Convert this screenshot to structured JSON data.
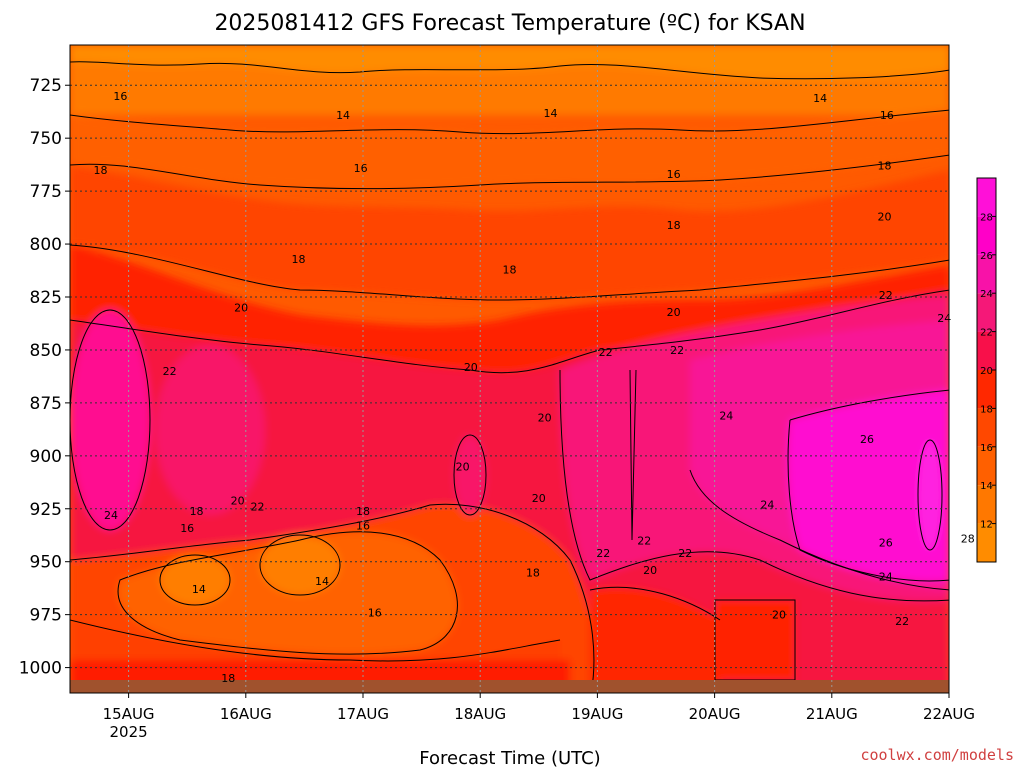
{
  "chart_data": {
    "type": "heatmap",
    "title": "2025081412 GFS Forecast Temperature (ºC) for KSAN",
    "xlabel": "Forecast Time (UTC)",
    "ylabel": "",
    "x_ticks": [
      "15AUG",
      "16AUG",
      "17AUG",
      "18AUG",
      "19AUG",
      "20AUG",
      "21AUG",
      "22AUG"
    ],
    "x_year": "2025",
    "x_range_days": [
      14.5,
      22.0
    ],
    "y_ticks": [
      725,
      750,
      775,
      800,
      825,
      850,
      875,
      900,
      925,
      950,
      975,
      1000
    ],
    "y_range_hpa": [
      706,
      1012
    ],
    "grid": true,
    "colorbar": {
      "levels": [
        12,
        14,
        16,
        18,
        20,
        22,
        24,
        26,
        28
      ],
      "colors": [
        "#ff8c00",
        "#ff7800",
        "#ff6000",
        "#ff4800",
        "#ff2800",
        "#f8104a",
        "#f51878",
        "#f812a8",
        "#ff00c8",
        "#ff10d8"
      ]
    },
    "contour_labels": [
      {
        "text": "16",
        "day": 14.93,
        "p": 730
      },
      {
        "text": "14",
        "day": 16.83,
        "p": 739
      },
      {
        "text": "14",
        "day": 18.6,
        "p": 738
      },
      {
        "text": "14",
        "day": 20.9,
        "p": 731
      },
      {
        "text": "16",
        "day": 21.47,
        "p": 739
      },
      {
        "text": "18",
        "day": 14.76,
        "p": 765
      },
      {
        "text": "16",
        "day": 16.98,
        "p": 764
      },
      {
        "text": "16",
        "day": 19.65,
        "p": 767
      },
      {
        "text": "18",
        "day": 21.45,
        "p": 763
      },
      {
        "text": "18",
        "day": 16.45,
        "p": 807
      },
      {
        "text": "18",
        "day": 18.25,
        "p": 812
      },
      {
        "text": "18",
        "day": 19.65,
        "p": 791
      },
      {
        "text": "20",
        "day": 21.45,
        "p": 787
      },
      {
        "text": "20",
        "day": 15.96,
        "p": 830
      },
      {
        "text": "20",
        "day": 19.65,
        "p": 832
      },
      {
        "text": "22",
        "day": 21.46,
        "p": 824
      },
      {
        "text": "24",
        "day": 21.96,
        "p": 835
      },
      {
        "text": "22",
        "day": 15.35,
        "p": 860
      },
      {
        "text": "20",
        "day": 17.92,
        "p": 858
      },
      {
        "text": "22",
        "day": 19.07,
        "p": 851
      },
      {
        "text": "22",
        "day": 19.68,
        "p": 850
      },
      {
        "text": "20",
        "day": 18.55,
        "p": 882
      },
      {
        "text": "24",
        "day": 20.1,
        "p": 881
      },
      {
        "text": "26",
        "day": 21.3,
        "p": 892
      },
      {
        "text": "20",
        "day": 17.85,
        "p": 905
      },
      {
        "text": "18",
        "day": 15.58,
        "p": 926
      },
      {
        "text": "20",
        "day": 15.93,
        "p": 921
      },
      {
        "text": "22",
        "day": 16.1,
        "p": 924
      },
      {
        "text": "16",
        "day": 15.5,
        "p": 934
      },
      {
        "text": "18",
        "day": 17.0,
        "p": 926
      },
      {
        "text": "16",
        "day": 17.0,
        "p": 933
      },
      {
        "text": "24",
        "day": 14.85,
        "p": 928
      },
      {
        "text": "20",
        "day": 18.5,
        "p": 920
      },
      {
        "text": "24",
        "day": 20.45,
        "p": 923
      },
      {
        "text": "22",
        "day": 19.4,
        "p": 940
      },
      {
        "text": "26",
        "day": 21.46,
        "p": 941
      },
      {
        "text": "28",
        "day": 22.16,
        "p": 939
      },
      {
        "text": "22",
        "day": 19.05,
        "p": 946
      },
      {
        "text": "22",
        "day": 19.75,
        "p": 946
      },
      {
        "text": "20",
        "day": 19.45,
        "p": 954
      },
      {
        "text": "18",
        "day": 18.45,
        "p": 955
      },
      {
        "text": "14",
        "day": 15.6,
        "p": 963
      },
      {
        "text": "14",
        "day": 16.65,
        "p": 959
      },
      {
        "text": "24",
        "day": 21.46,
        "p": 957
      },
      {
        "text": "16",
        "day": 17.1,
        "p": 974
      },
      {
        "text": "20",
        "day": 20.55,
        "p": 975
      },
      {
        "text": "22",
        "day": 21.6,
        "p": 978
      },
      {
        "text": "18",
        "day": 15.85,
        "p": 1005
      }
    ]
  },
  "credit": "coolwx.com/models"
}
